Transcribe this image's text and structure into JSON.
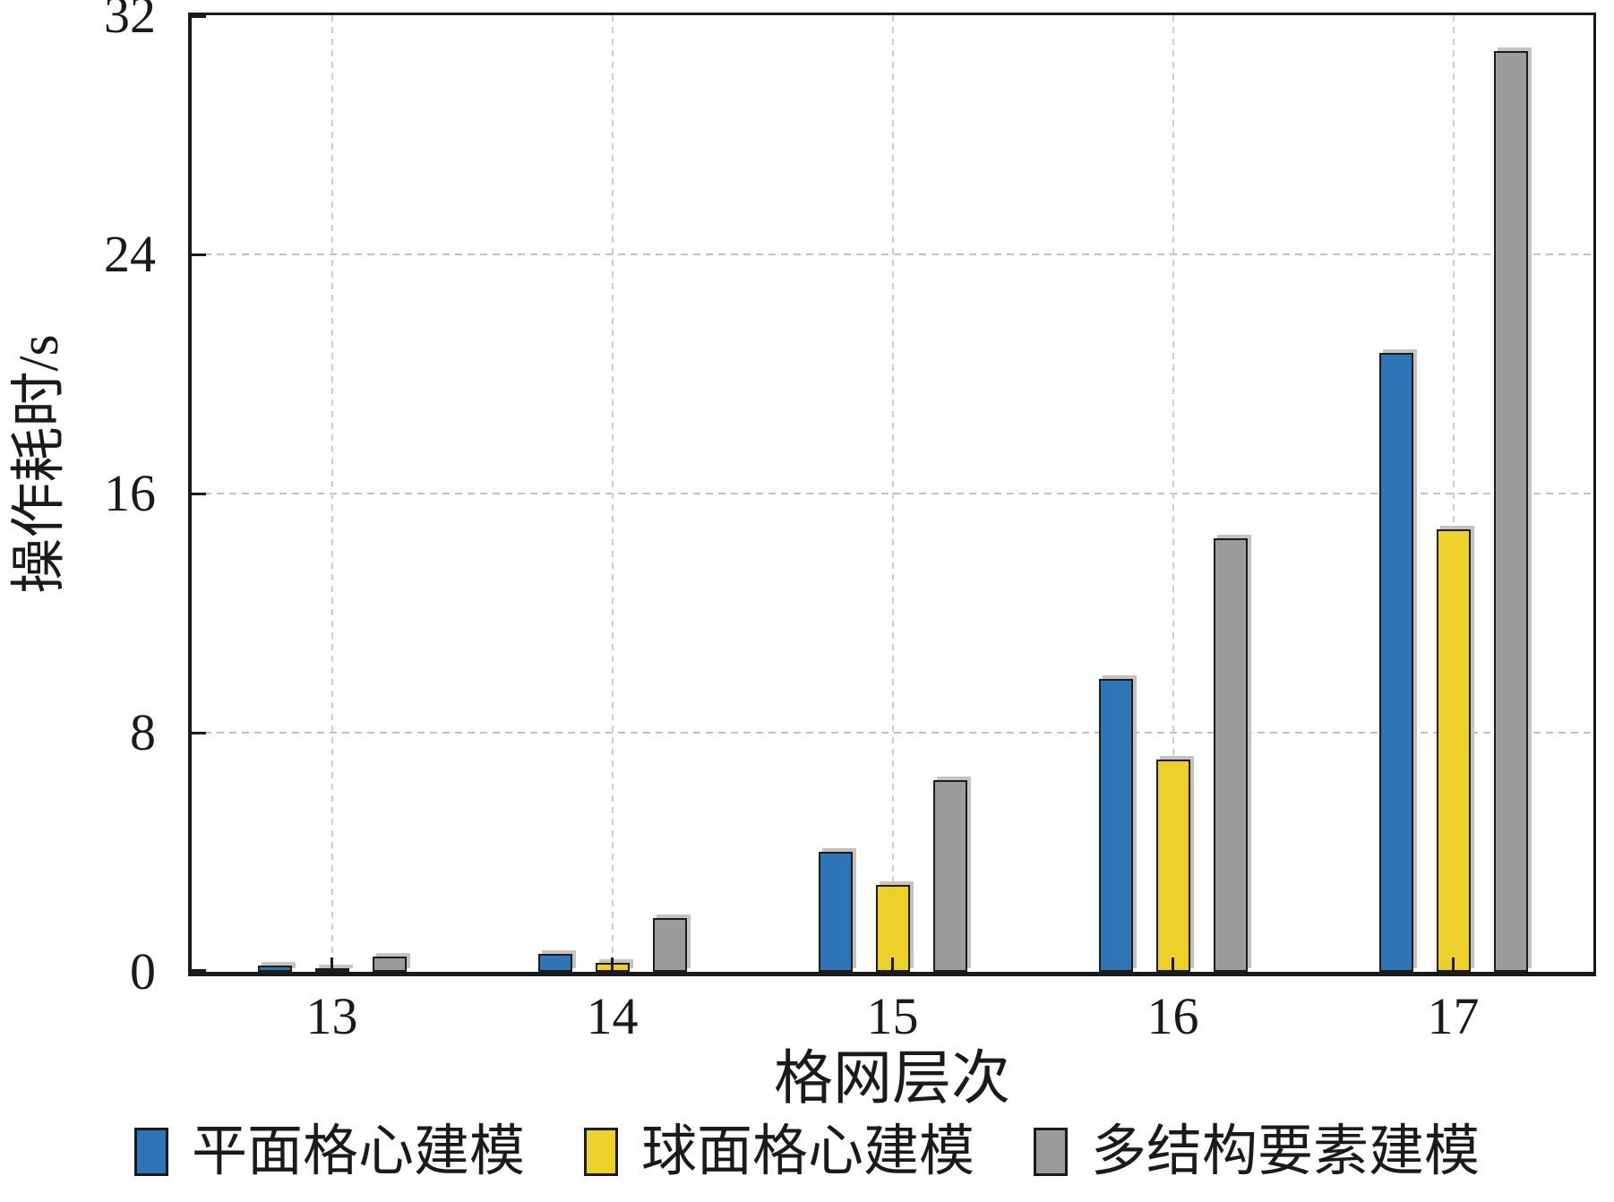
{
  "chart_data": {
    "type": "bar",
    "title": "",
    "xlabel": "格网层次",
    "ylabel": "操作耗时/s",
    "categories": [
      "13",
      "14",
      "15",
      "16",
      "17"
    ],
    "series": [
      {
        "name": "平面格心建模",
        "color": "#2e75b5",
        "values": [
          0.2,
          0.6,
          4.0,
          9.8,
          20.7
        ]
      },
      {
        "name": "球面格心建模",
        "color": "#edd029",
        "values": [
          0.1,
          0.3,
          2.9,
          7.1,
          14.8
        ]
      },
      {
        "name": "多结构要素建模",
        "color": "#9b9b9b",
        "values": [
          0.5,
          1.8,
          6.4,
          14.5,
          30.8
        ]
      }
    ],
    "ylim": [
      0,
      32
    ],
    "yticks": [
      0,
      8,
      16,
      24,
      32
    ],
    "grid": "dashed horizontal gridlines at y ticks and dashed vertical gridlines at category centers",
    "legend_position": "bottom"
  },
  "colors": {
    "frame": "#1a1a1a",
    "grid": "#c8c8c8",
    "bar_border": "#1c1c1c",
    "bar_shadow": "#c6c2bf",
    "background": "#ffffff"
  }
}
